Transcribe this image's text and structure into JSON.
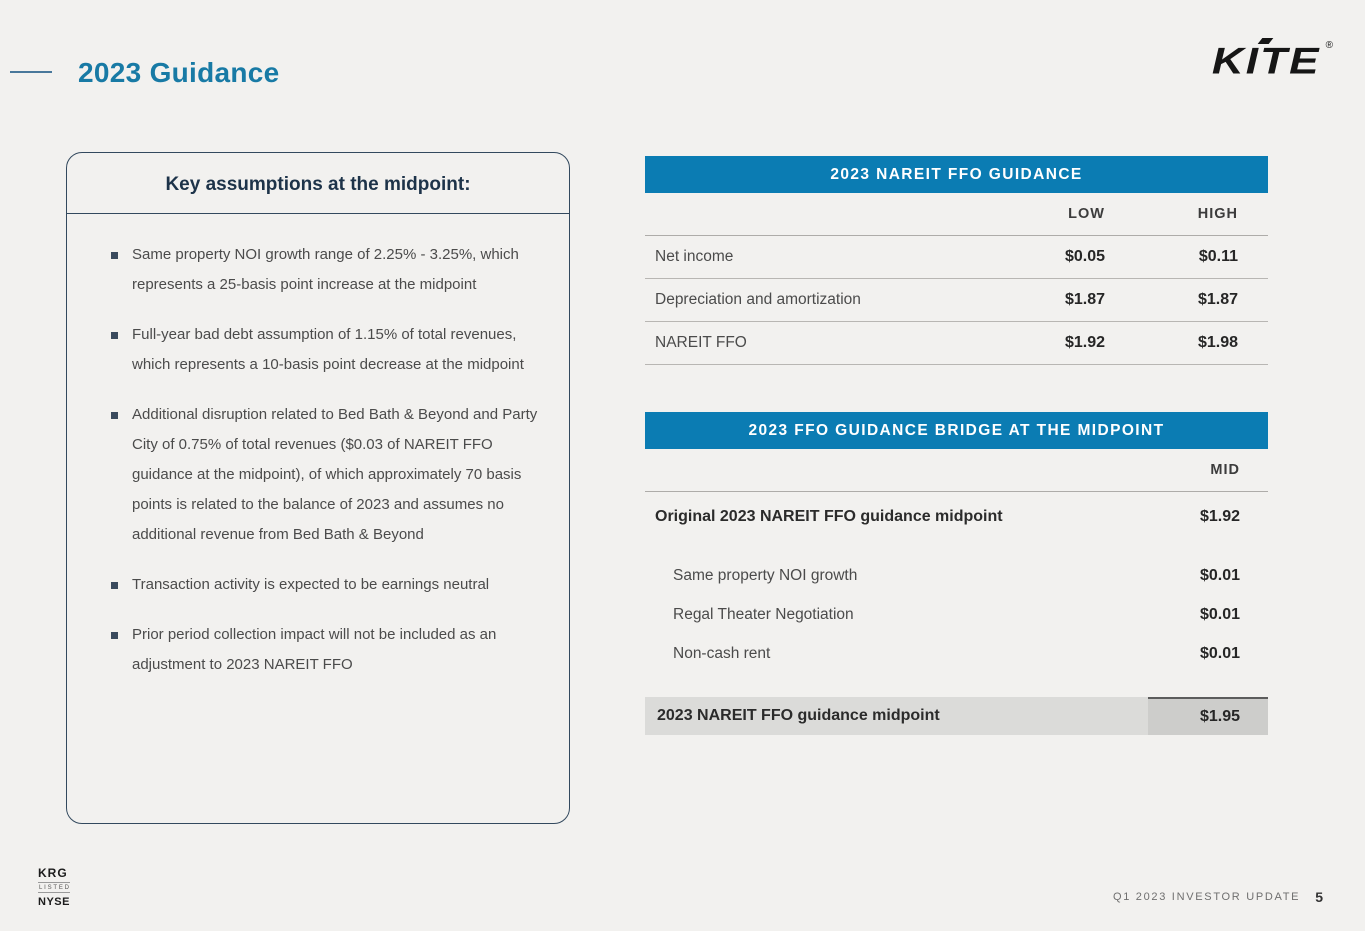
{
  "page": {
    "title": "2023 Guidance",
    "logo_text": "KITE",
    "footer": {
      "listing": {
        "line1": "KRG",
        "line2": "LISTED",
        "line3": "NYSE"
      },
      "caption": "Q1 2023 INVESTOR UPDATE",
      "page_number": "5"
    }
  },
  "assumptions": {
    "heading": "Key assumptions at the midpoint:",
    "items": [
      "Same property NOI growth range of 2.25% - 3.25%, which represents a 25-basis point increase at the midpoint",
      "Full-year bad debt assumption of 1.15% of total revenues, which represents a 10-basis point decrease at the midpoint",
      "Additional disruption related to Bed Bath & Beyond and Party City of 0.75% of total revenues ($0.03 of NAREIT FFO guidance at the midpoint), of which approximately 70 basis points is related to the balance of 2023 and assumes no additional revenue from Bed Bath & Beyond",
      "Transaction activity is expected to be earnings neutral",
      "Prior period collection impact will not be included as an adjustment to 2023 NAREIT FFO"
    ]
  },
  "ffo_guidance_table": {
    "title": "2023 NAREIT FFO GUIDANCE",
    "columns": {
      "low": "LOW",
      "high": "HIGH"
    },
    "rows": [
      {
        "label": "Net income",
        "low": "$0.05",
        "high": "$0.11"
      },
      {
        "label": "Depreciation and amortization",
        "low": "$1.87",
        "high": "$1.87"
      },
      {
        "label": "NAREIT FFO",
        "low": "$1.92",
        "high": "$1.98"
      }
    ]
  },
  "bridge_table": {
    "title": "2023 FFO GUIDANCE BRIDGE AT THE MIDPOINT",
    "column": "MID",
    "original_row": {
      "label": "Original 2023 NAREIT FFO guidance midpoint",
      "value": "$1.92"
    },
    "adjustments": [
      {
        "label": "Same property NOI growth",
        "value": "$0.01"
      },
      {
        "label": "Regal Theater Negotiation",
        "value": "$0.01"
      },
      {
        "label": "Non-cash rent",
        "value": "$0.01"
      }
    ],
    "total_row": {
      "label": "2023 NAREIT FFO guidance midpoint",
      "value": "$1.95"
    }
  },
  "colors": {
    "background": "#f2f1ef",
    "header_blue": "#0b7cb3",
    "title_teal": "#187aa5",
    "box_border_navy": "#33495e",
    "total_row_gray": "#dbdbd9"
  }
}
